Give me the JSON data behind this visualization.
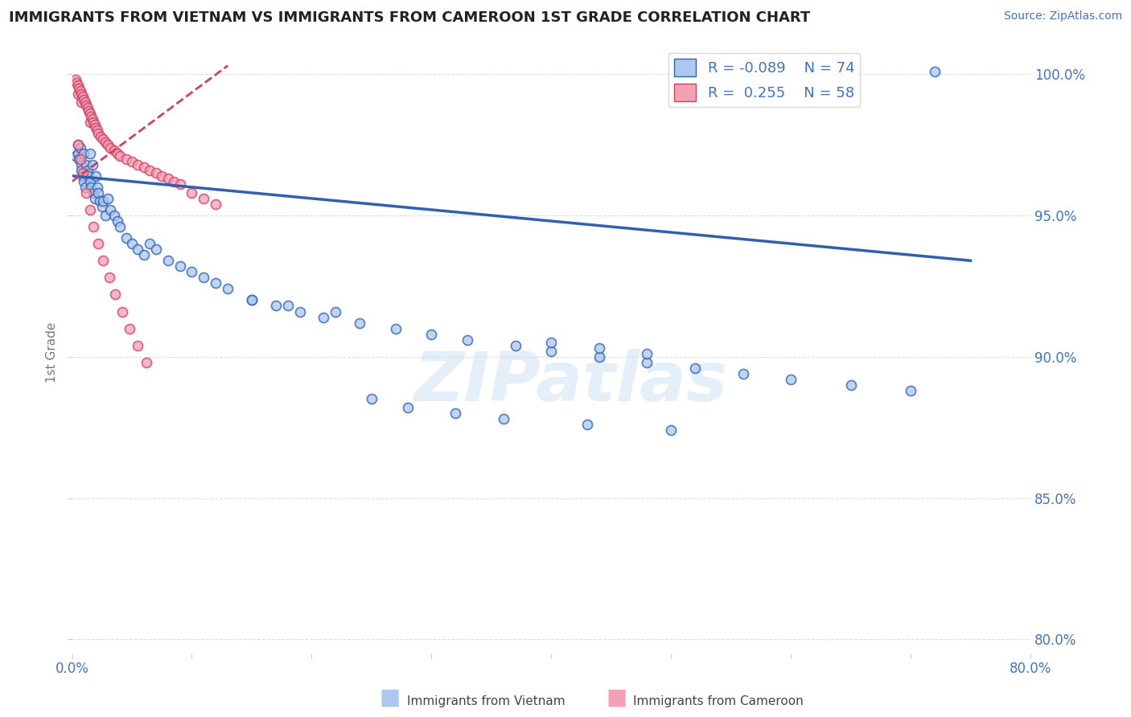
{
  "title": "IMMIGRANTS FROM VIETNAM VS IMMIGRANTS FROM CAMEROON 1ST GRADE CORRELATION CHART",
  "source": "Source: ZipAtlas.com",
  "ylabel": "1st Grade",
  "xlim": [
    0.0,
    0.8
  ],
  "ylim": [
    0.795,
    1.008
  ],
  "legend_vietnam_R": "-0.089",
  "legend_vietnam_N": "74",
  "legend_cameroon_R": "0.255",
  "legend_cameroon_N": "58",
  "vietnam_color": "#aac8f0",
  "cameroon_color": "#f4a0b5",
  "vietnam_line_color": "#3060b0",
  "cameroon_line_color": "#d04060",
  "watermark_text": "ZIPatlas",
  "background_color": "#ffffff",
  "grid_color": "#dddddd",
  "title_color": "#222222",
  "axis_label_color": "#4472c4",
  "marker_size": 75,
  "vietnam_scatter_x": [
    0.003,
    0.005,
    0.005,
    0.006,
    0.007,
    0.008,
    0.008,
    0.009,
    0.01,
    0.01,
    0.011,
    0.012,
    0.013,
    0.014,
    0.015,
    0.015,
    0.016,
    0.017,
    0.018,
    0.019,
    0.02,
    0.021,
    0.022,
    0.023,
    0.025,
    0.026,
    0.028,
    0.03,
    0.032,
    0.035,
    0.038,
    0.04,
    0.045,
    0.05,
    0.055,
    0.06,
    0.065,
    0.07,
    0.08,
    0.09,
    0.1,
    0.11,
    0.12,
    0.13,
    0.15,
    0.17,
    0.19,
    0.21,
    0.24,
    0.27,
    0.3,
    0.33,
    0.37,
    0.4,
    0.44,
    0.48,
    0.52,
    0.56,
    0.6,
    0.65,
    0.7,
    0.25,
    0.28,
    0.32,
    0.36,
    0.43,
    0.5,
    0.15,
    0.18,
    0.22,
    0.4,
    0.44,
    0.48,
    0.72
  ],
  "vietnam_scatter_y": [
    0.971,
    0.975,
    0.972,
    0.97,
    0.974,
    0.968,
    0.966,
    0.964,
    0.972,
    0.962,
    0.96,
    0.968,
    0.966,
    0.964,
    0.972,
    0.962,
    0.96,
    0.968,
    0.958,
    0.956,
    0.964,
    0.96,
    0.958,
    0.955,
    0.953,
    0.955,
    0.95,
    0.956,
    0.952,
    0.95,
    0.948,
    0.946,
    0.942,
    0.94,
    0.938,
    0.936,
    0.94,
    0.938,
    0.934,
    0.932,
    0.93,
    0.928,
    0.926,
    0.924,
    0.92,
    0.918,
    0.916,
    0.914,
    0.912,
    0.91,
    0.908,
    0.906,
    0.904,
    0.902,
    0.9,
    0.898,
    0.896,
    0.894,
    0.892,
    0.89,
    0.888,
    0.885,
    0.882,
    0.88,
    0.878,
    0.876,
    0.874,
    0.92,
    0.918,
    0.916,
    0.905,
    0.903,
    0.901,
    1.001
  ],
  "cameroon_scatter_x": [
    0.003,
    0.004,
    0.005,
    0.005,
    0.006,
    0.007,
    0.008,
    0.008,
    0.009,
    0.01,
    0.011,
    0.012,
    0.013,
    0.014,
    0.015,
    0.015,
    0.016,
    0.017,
    0.018,
    0.019,
    0.02,
    0.021,
    0.022,
    0.024,
    0.026,
    0.028,
    0.03,
    0.032,
    0.035,
    0.038,
    0.04,
    0.045,
    0.05,
    0.055,
    0.06,
    0.065,
    0.07,
    0.075,
    0.08,
    0.085,
    0.09,
    0.1,
    0.11,
    0.12,
    0.005,
    0.007,
    0.009,
    0.012,
    0.015,
    0.018,
    0.022,
    0.026,
    0.031,
    0.036,
    0.042,
    0.048,
    0.055,
    0.062
  ],
  "cameroon_scatter_y": [
    0.998,
    0.997,
    0.996,
    0.993,
    0.995,
    0.994,
    0.993,
    0.99,
    0.992,
    0.991,
    0.99,
    0.989,
    0.988,
    0.987,
    0.986,
    0.983,
    0.985,
    0.984,
    0.983,
    0.982,
    0.981,
    0.98,
    0.979,
    0.978,
    0.977,
    0.976,
    0.975,
    0.974,
    0.973,
    0.972,
    0.971,
    0.97,
    0.969,
    0.968,
    0.967,
    0.966,
    0.965,
    0.964,
    0.963,
    0.962,
    0.961,
    0.958,
    0.956,
    0.954,
    0.975,
    0.97,
    0.965,
    0.958,
    0.952,
    0.946,
    0.94,
    0.934,
    0.928,
    0.922,
    0.916,
    0.91,
    0.904,
    0.898
  ],
  "vietnam_trend_x": [
    0.0,
    0.75
  ],
  "vietnam_trend_y": [
    0.964,
    0.934
  ],
  "cameroon_trend_x": [
    0.0,
    0.13
  ],
  "cameroon_trend_y": [
    0.962,
    1.003
  ]
}
